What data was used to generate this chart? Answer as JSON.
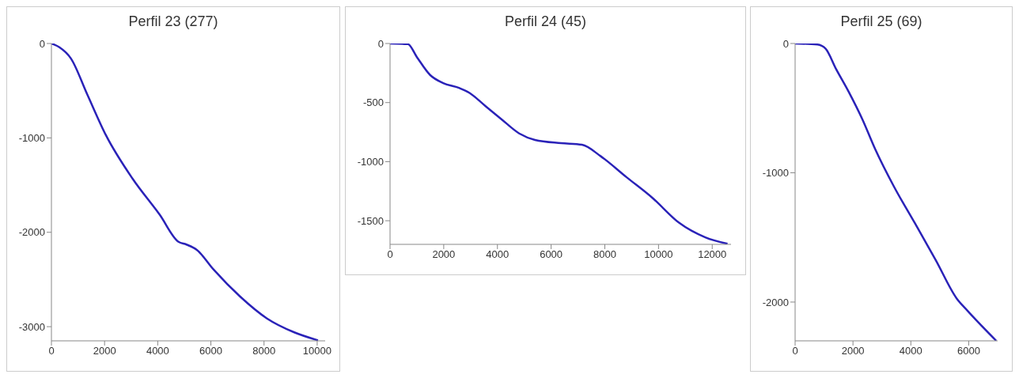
{
  "chart_data": [
    {
      "type": "line",
      "title": "Perfil 23 (277)",
      "xlim": [
        0,
        10300
      ],
      "xticks": [
        0,
        2000,
        4000,
        6000,
        8000,
        10000
      ],
      "ylim": [
        -3150,
        0
      ],
      "yticks": [
        0,
        -1000,
        -2000,
        -3000
      ],
      "series": [
        {
          "color": "#2a22b8",
          "x": [
            0,
            300,
            737,
            1343,
            2050,
            3060,
            4070,
            4780,
            5080,
            5480,
            6090,
            7100,
            8110,
            9120,
            10030
          ],
          "values": [
            0,
            -40,
            -160,
            -536,
            -971,
            -1435,
            -1812,
            -2101,
            -2130,
            -2188,
            -2391,
            -2681,
            -2913,
            -3058,
            -3145
          ]
        }
      ]
    },
    {
      "type": "line",
      "title": "Perfil 24 (45)",
      "xlim": [
        0,
        12700
      ],
      "xticks": [
        0,
        2000,
        4000,
        6000,
        8000,
        10000,
        12000
      ],
      "ylim": [
        -1700,
        0
      ],
      "yticks": [
        0,
        -500,
        -1000,
        -1500
      ],
      "series": [
        {
          "color": "#2a22b8",
          "x": [
            0,
            663,
            1000,
            1490,
            1980,
            2570,
            2960,
            3540,
            4130,
            4810,
            5400,
            6370,
            7150,
            7840,
            8810,
            9790,
            10760,
            11740,
            12570
          ],
          "values": [
            0,
            -5,
            -115,
            -266,
            -335,
            -376,
            -418,
            -527,
            -637,
            -761,
            -816,
            -843,
            -857,
            -953,
            -1132,
            -1310,
            -1516,
            -1640,
            -1695
          ]
        }
      ]
    },
    {
      "type": "line",
      "title": "Perfil 25 (69)",
      "xlim": [
        0,
        7000
      ],
      "xticks": [
        0,
        2000,
        4000,
        6000
      ],
      "ylim": [
        -2300,
        0
      ],
      "yticks": [
        0,
        -1000,
        -2000
      ],
      "series": [
        {
          "color": "#2a22b8",
          "x": [
            0,
            770,
            1050,
            1410,
            1860,
            2320,
            2770,
            3410,
            4140,
            4860,
            5590,
            5950,
            6950
          ],
          "values": [
            0,
            -8,
            -39,
            -195,
            -377,
            -584,
            -818,
            -1104,
            -1390,
            -1675,
            -1974,
            -2065,
            -2299
          ]
        }
      ]
    }
  ]
}
